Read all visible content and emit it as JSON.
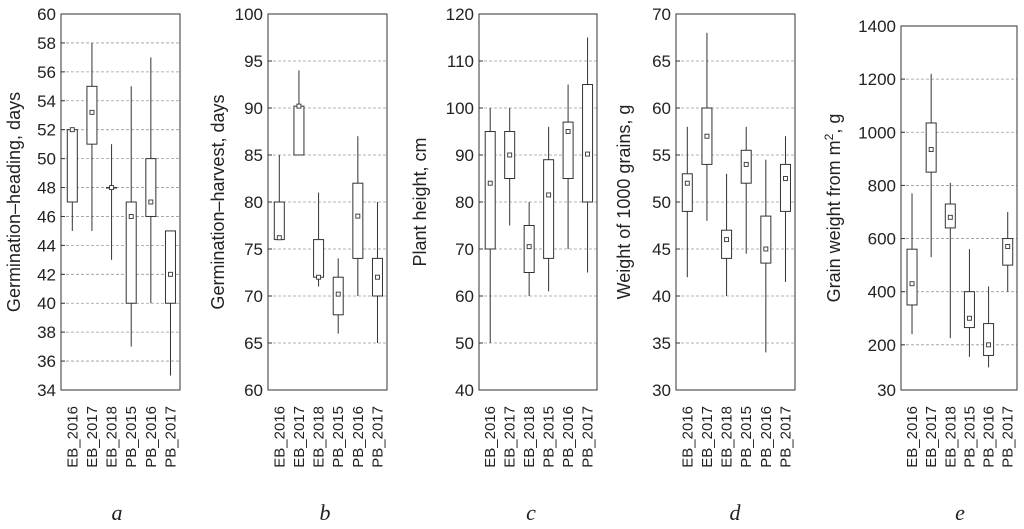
{
  "chart_data": [
    {
      "type": "box",
      "panel": "a",
      "ylabel": "Germination–heading, days",
      "xlabel": "",
      "ylim": [
        34,
        60
      ],
      "yticks": [
        34,
        36,
        38,
        40,
        42,
        44,
        46,
        48,
        50,
        52,
        54,
        56,
        58,
        60
      ],
      "grid": true,
      "categories": [
        "EB_2016",
        "EB_2017",
        "EB_2018",
        "PB_2015",
        "PB_2016",
        "PB_2017"
      ],
      "boxes": [
        {
          "min": 45,
          "q1": 47,
          "median": 52,
          "q3": 52,
          "max": 52
        },
        {
          "min": 45,
          "q1": 51,
          "median": 53.2,
          "q3": 55,
          "max": 58
        },
        {
          "min": 43,
          "q1": 48,
          "median": 48,
          "q3": 48,
          "max": 51
        },
        {
          "min": 37,
          "q1": 40,
          "median": 46,
          "q3": 47,
          "max": 55
        },
        {
          "min": 40,
          "q1": 46,
          "median": 47,
          "q3": 50,
          "max": 57
        },
        {
          "min": 35,
          "q1": 40,
          "median": 42,
          "q3": 45,
          "max": 45
        }
      ]
    },
    {
      "type": "box",
      "panel": "b",
      "ylabel": "Germination–harvest, days",
      "xlabel": "",
      "ylim": [
        60,
        100
      ],
      "yticks": [
        60,
        65,
        70,
        75,
        80,
        85,
        90,
        95,
        100
      ],
      "grid": true,
      "categories": [
        "EB_2016",
        "EB_2017",
        "EB_2018",
        "PB_2015",
        "PB_2016",
        "PB_2017"
      ],
      "boxes": [
        {
          "min": 76,
          "q1": 76,
          "median": 76.2,
          "q3": 80,
          "max": 85
        },
        {
          "min": 85,
          "q1": 85,
          "median": 90.2,
          "q3": 90.2,
          "max": 94
        },
        {
          "min": 71,
          "q1": 72,
          "median": 72,
          "q3": 76,
          "max": 81
        },
        {
          "min": 66,
          "q1": 68,
          "median": 70.2,
          "q3": 72,
          "max": 74
        },
        {
          "min": 70,
          "q1": 74,
          "median": 78.5,
          "q3": 82,
          "max": 87
        },
        {
          "min": 65,
          "q1": 70,
          "median": 72,
          "q3": 74,
          "max": 80
        }
      ]
    },
    {
      "type": "box",
      "panel": "c",
      "ylabel": "Plant height, cm",
      "xlabel": "",
      "ylim": [
        40,
        120
      ],
      "yticks": [
        40,
        50,
        60,
        70,
        80,
        90,
        100,
        110,
        120
      ],
      "grid": true,
      "categories": [
        "EB_2016",
        "EB_2017",
        "EB_2018",
        "PB_2015",
        "PB_2016",
        "PB_2017"
      ],
      "boxes": [
        {
          "min": 50,
          "q1": 70,
          "median": 84,
          "q3": 95,
          "max": 100
        },
        {
          "min": 75,
          "q1": 85,
          "median": 90,
          "q3": 95,
          "max": 100
        },
        {
          "min": 60,
          "q1": 65,
          "median": 70.5,
          "q3": 75,
          "max": 80
        },
        {
          "min": 61,
          "q1": 68,
          "median": 81.5,
          "q3": 89,
          "max": 96
        },
        {
          "min": 70,
          "q1": 85,
          "median": 95,
          "q3": 97,
          "max": 105
        },
        {
          "min": 65,
          "q1": 80,
          "median": 90.2,
          "q3": 105,
          "max": 115
        }
      ]
    },
    {
      "type": "box",
      "panel": "d",
      "ylabel": "Weight of 1000 grains, g",
      "xlabel": "",
      "ylim": [
        30,
        70
      ],
      "yticks": [
        30,
        35,
        40,
        45,
        50,
        55,
        60,
        65,
        70
      ],
      "grid": true,
      "categories": [
        "EB_2016",
        "EB_2017",
        "EB_2018",
        "PB_2015",
        "PB_2016",
        "PB_2017"
      ],
      "boxes": [
        {
          "min": 42,
          "q1": 49,
          "median": 52,
          "q3": 53,
          "max": 58
        },
        {
          "min": 48,
          "q1": 54,
          "median": 57,
          "q3": 60,
          "max": 68
        },
        {
          "min": 40,
          "q1": 44,
          "median": 46,
          "q3": 47,
          "max": 53
        },
        {
          "min": 44.5,
          "q1": 52,
          "median": 54,
          "q3": 55.5,
          "max": 58
        },
        {
          "min": 34,
          "q1": 43.5,
          "median": 45,
          "q3": 48.5,
          "max": 54.5
        },
        {
          "min": 41.5,
          "q1": 49,
          "median": 52.5,
          "q3": 54,
          "max": 57
        }
      ]
    },
    {
      "type": "box",
      "panel": "e",
      "ylabel_main": "Grain weight from m",
      "ylabel_sup": "2",
      "ylabel_tail": ", g",
      "xlabel": "",
      "ylim": [
        30,
        1400
      ],
      "yticks": [
        30,
        200,
        400,
        600,
        800,
        1000,
        1200,
        1400
      ],
      "grid": true,
      "categories": [
        "EB_2016",
        "EB_2017",
        "EB_2018",
        "PB_2015",
        "PB_2016",
        "PB_2017"
      ],
      "boxes": [
        {
          "min": 240,
          "q1": 350,
          "median": 430,
          "q3": 560,
          "max": 770
        },
        {
          "min": 530,
          "q1": 850,
          "median": 935,
          "q3": 1035,
          "max": 1220
        },
        {
          "min": 225,
          "q1": 640,
          "median": 680,
          "q3": 730,
          "max": 810
        },
        {
          "min": 155,
          "q1": 265,
          "median": 300,
          "q3": 400,
          "max": 560
        },
        {
          "min": 115,
          "q1": 160,
          "median": 200,
          "q3": 280,
          "max": 420
        },
        {
          "min": 400,
          "q1": 500,
          "median": 570,
          "q3": 600,
          "max": 700
        }
      ]
    }
  ]
}
